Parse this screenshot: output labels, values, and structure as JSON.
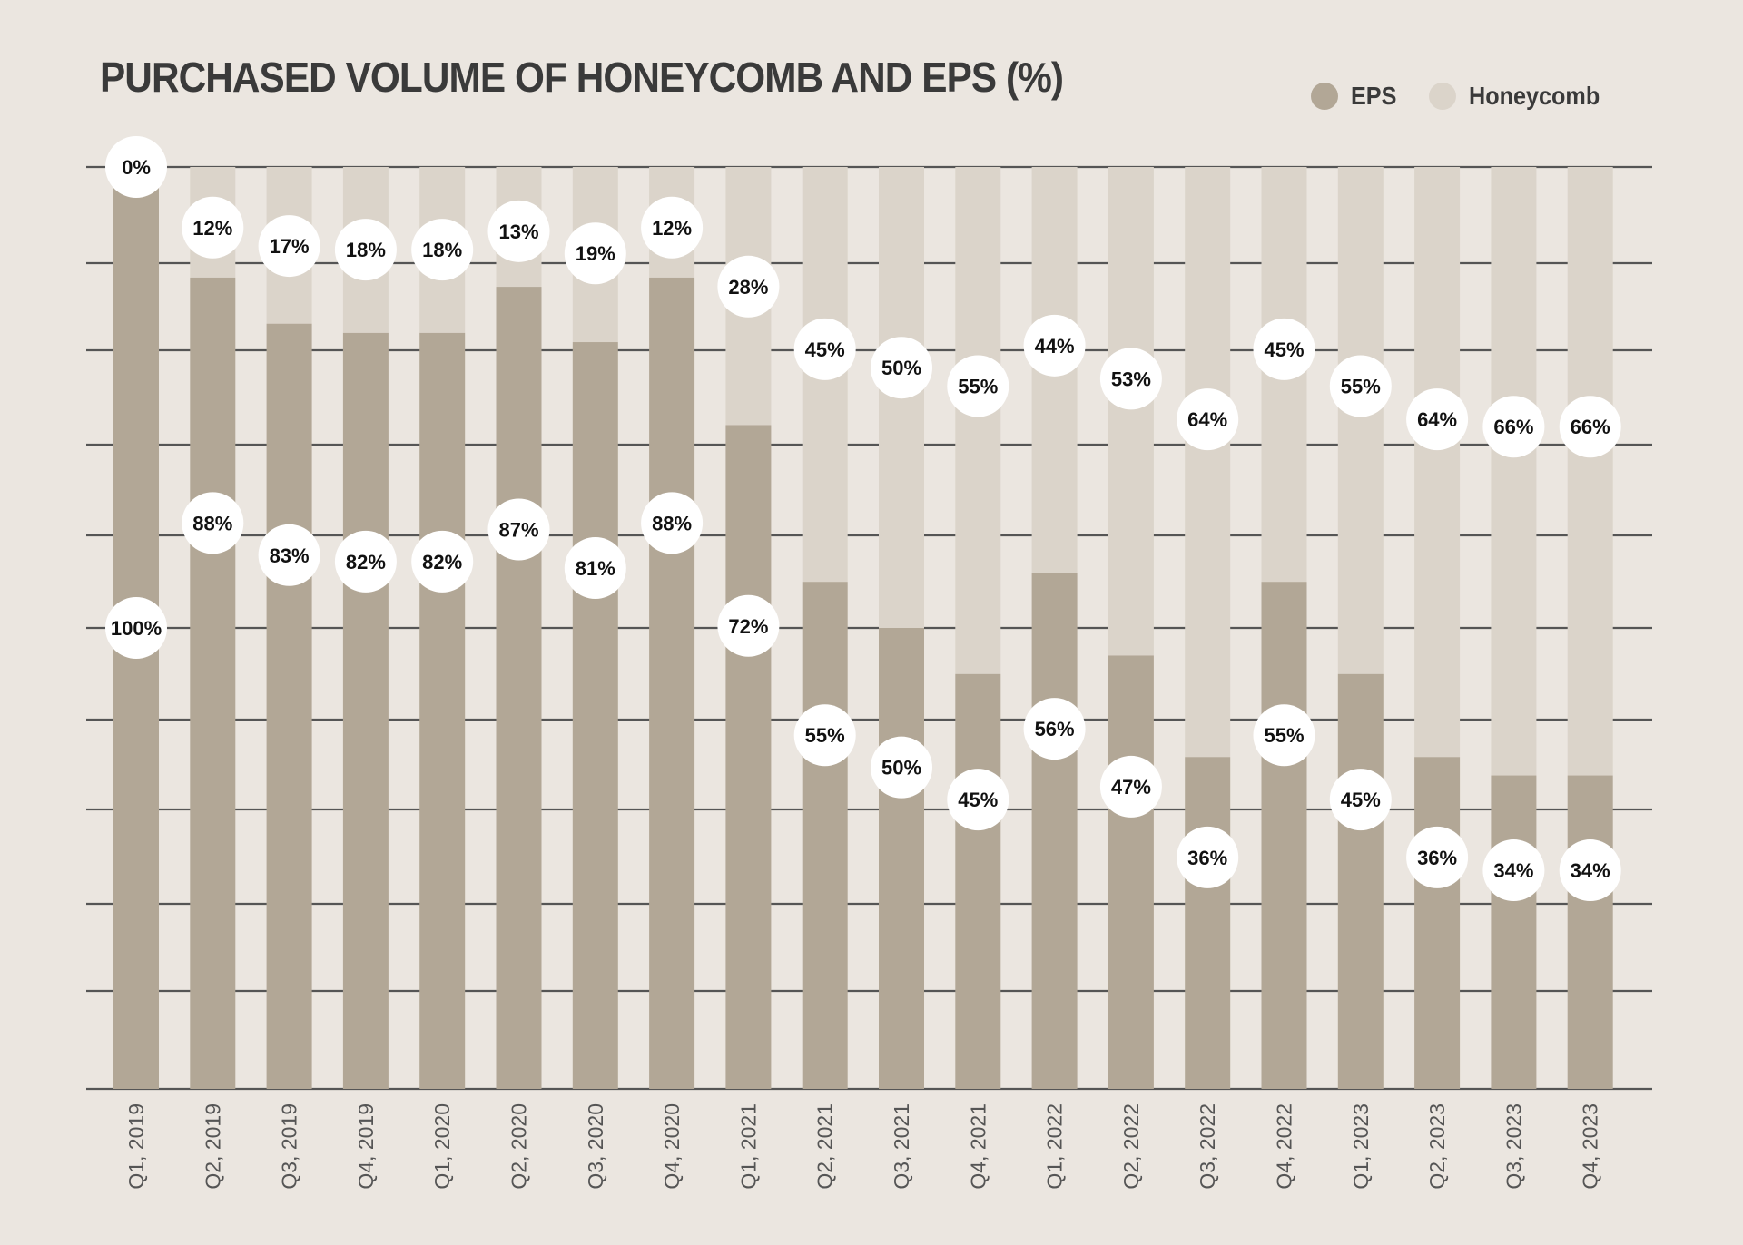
{
  "chart_data": {
    "type": "bar",
    "stacked": true,
    "title": "PURCHASED VOLUME OF HONEYCOMB AND EPS (%)",
    "xlabel": "",
    "ylabel": "",
    "ylim": [
      0,
      100
    ],
    "legend_position": "top-right",
    "categories": [
      "Q1, 2019",
      "Q2, 2019",
      "Q3, 2019",
      "Q4, 2019",
      "Q1, 2020",
      "Q2, 2020",
      "Q3, 2020",
      "Q4, 2020",
      "Q1, 2021",
      "Q2, 2021",
      "Q3, 2021",
      "Q4, 2021",
      "Q1, 2022",
      "Q2, 2022",
      "Q3, 2022",
      "Q4, 2022",
      "Q1, 2023",
      "Q2, 2023",
      "Q3, 2023",
      "Q4, 2023"
    ],
    "series": [
      {
        "name": "EPS",
        "color": "#b2a796",
        "values": [
          100,
          88,
          83,
          82,
          82,
          87,
          81,
          88,
          72,
          55,
          50,
          45,
          56,
          47,
          36,
          55,
          45,
          36,
          34,
          34
        ]
      },
      {
        "name": "Honeycomb",
        "color": "#dbd4ca",
        "values": [
          0,
          12,
          17,
          18,
          18,
          13,
          19,
          12,
          28,
          45,
          50,
          55,
          44,
          53,
          64,
          45,
          55,
          64,
          66,
          66
        ]
      }
    ],
    "unit_suffix": "%"
  },
  "colors": {
    "background": "#ebe6e0",
    "gridline": "#555555",
    "label_bubble": "#ffffff"
  }
}
